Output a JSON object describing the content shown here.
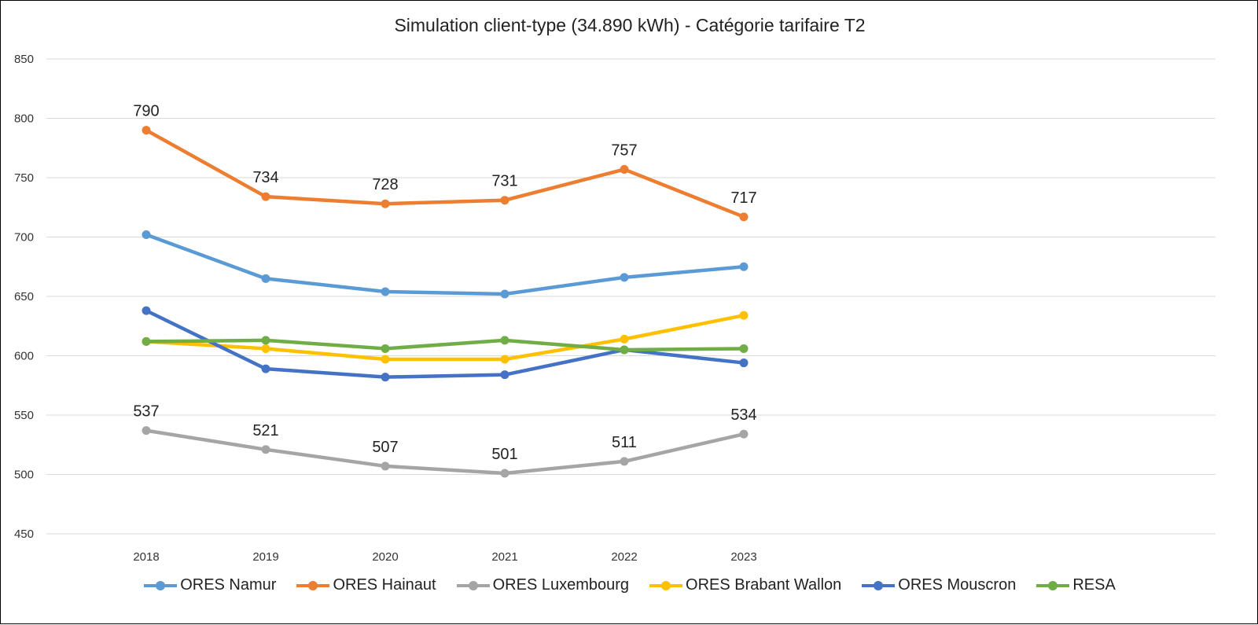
{
  "chart_data": {
    "type": "line",
    "title": "Simulation client-type (34.890 kWh) - Catégorie tarifaire T2",
    "xlabel": "",
    "ylabel": "",
    "categories": [
      "2018",
      "2019",
      "2020",
      "2021",
      "2022",
      "2023"
    ],
    "ylim": [
      450,
      850
    ],
    "yticks": [
      850,
      800,
      750,
      700,
      650,
      600,
      550,
      500,
      450
    ],
    "grid": true,
    "legend_position": "bottom",
    "series": [
      {
        "name": "ORES Namur",
        "color": "#5B9BD5",
        "values": [
          702,
          665,
          654,
          652,
          666,
          675
        ],
        "show_labels": false
      },
      {
        "name": "ORES Hainaut",
        "color": "#ED7D31",
        "values": [
          790,
          734,
          728,
          731,
          757,
          717
        ],
        "show_labels": true
      },
      {
        "name": "ORES Luxembourg",
        "color": "#A5A5A5",
        "values": [
          537,
          521,
          507,
          501,
          511,
          534
        ],
        "show_labels": true
      },
      {
        "name": "ORES Brabant Wallon",
        "color": "#FFC000",
        "values": [
          612,
          606,
          597,
          597,
          614,
          634
        ],
        "show_labels": false
      },
      {
        "name": "ORES Mouscron",
        "color": "#4472C4",
        "values": [
          638,
          589,
          582,
          584,
          605,
          594
        ],
        "show_labels": false
      },
      {
        "name": "RESA",
        "color": "#70AD47",
        "values": [
          612,
          613,
          606,
          613,
          605,
          606
        ],
        "show_labels": false
      }
    ]
  }
}
